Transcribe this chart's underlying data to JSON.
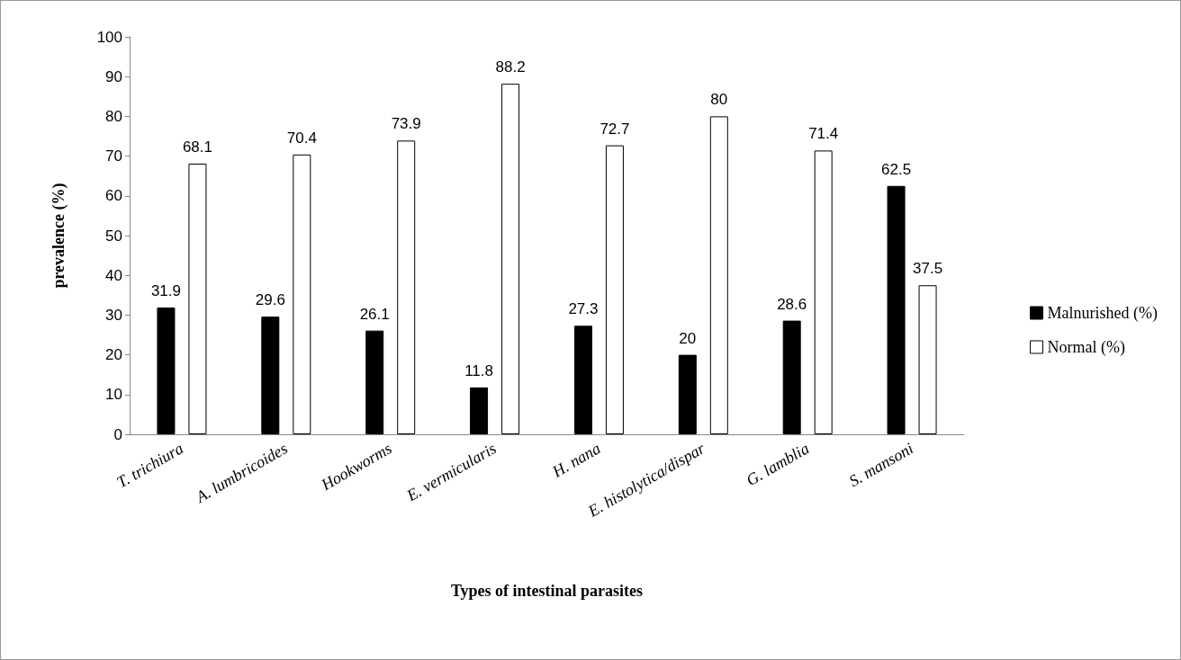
{
  "chart_data": {
    "type": "bar",
    "xlabel": "Types of intestinal parasites",
    "ylabel": "prevalence (%)",
    "categories": [
      "T. trichiura",
      "A. lumbricoides",
      "Hookworms",
      "E. vermicularis",
      "H. nana",
      "E. histolytica/dispar",
      "G. lamblia",
      "S. mansoni"
    ],
    "series": [
      {
        "name": "Malnurished (%)",
        "color": "#000000",
        "values": [
          31.9,
          29.6,
          26.1,
          11.8,
          27.3,
          20,
          28.6,
          62.5
        ]
      },
      {
        "name": "Normal (%)",
        "color": "#ffffff",
        "values": [
          68.1,
          70.4,
          73.9,
          88.2,
          72.7,
          80,
          71.4,
          37.5
        ]
      }
    ],
    "ylim": [
      0,
      100
    ],
    "yticks": [
      0,
      10,
      20,
      30,
      40,
      50,
      60,
      70,
      80,
      90,
      100
    ],
    "data_labels": true,
    "grid": false,
    "legend": "right"
  }
}
